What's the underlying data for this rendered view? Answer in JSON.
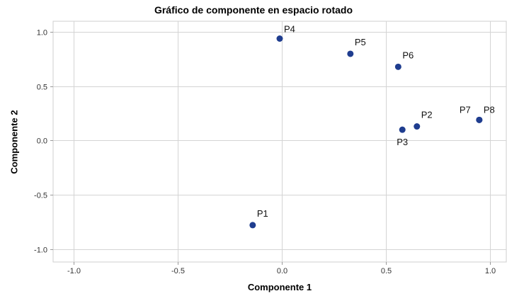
{
  "chart_data": {
    "type": "scatter",
    "title": "Gráfico de componente en espacio rotado",
    "xlabel": "Componente 1",
    "ylabel": "Componente 2",
    "xlim": [
      -1.1,
      1.08
    ],
    "ylim": [
      -1.12,
      1.1
    ],
    "xticks": [
      -1.0,
      -0.5,
      0.0,
      0.5,
      1.0
    ],
    "xtick_labels": [
      "-1.0",
      "-0.5",
      "0.0",
      "0.5",
      "1.0"
    ],
    "yticks": [
      -1.0,
      -0.5,
      0.0,
      0.5,
      1.0
    ],
    "ytick_labels": [
      "-1.0",
      "-0.5",
      "0.0",
      "0.5",
      "1.0"
    ],
    "grid": true,
    "point_color": "#1f3d8f",
    "points": [
      {
        "label": "P1",
        "x": -0.14,
        "y": -0.78
      },
      {
        "label": "P2",
        "x": 0.65,
        "y": 0.13
      },
      {
        "label": "P3",
        "x": 0.58,
        "y": 0.1
      },
      {
        "label": "P4",
        "x": -0.01,
        "y": 0.94
      },
      {
        "label": "P5",
        "x": 0.33,
        "y": 0.8
      },
      {
        "label": "P6",
        "x": 0.56,
        "y": 0.68
      },
      {
        "label": "P7",
        "x": 0.95,
        "y": 0.19
      },
      {
        "label": "P8",
        "x": 0.95,
        "y": 0.19
      }
    ]
  }
}
